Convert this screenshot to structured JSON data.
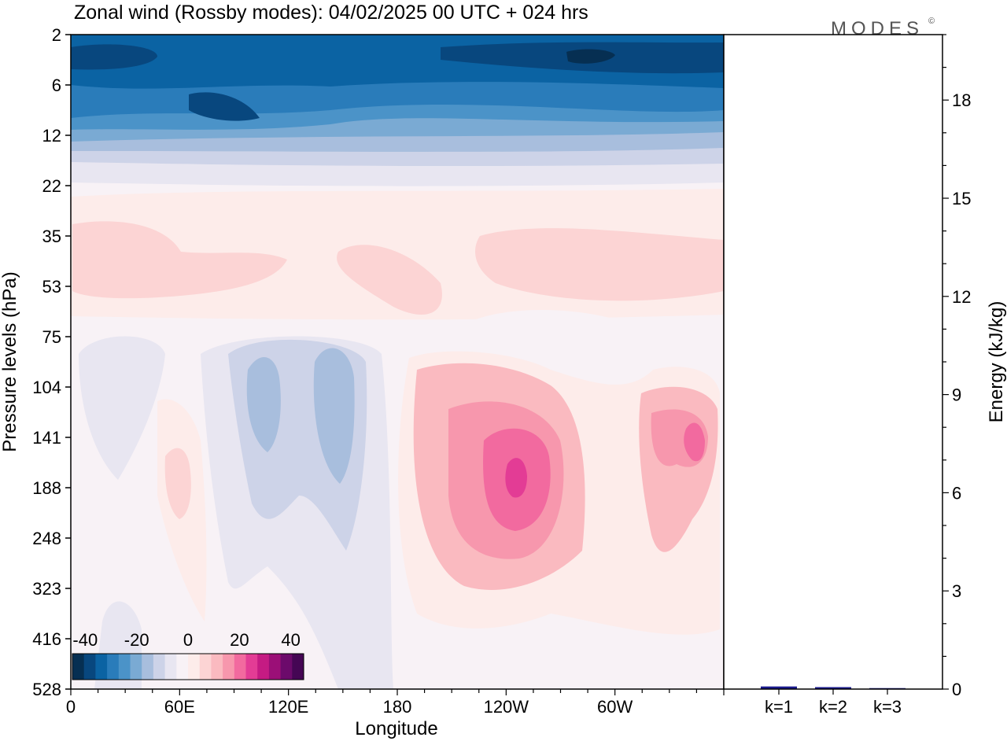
{
  "header": {
    "title": "Zonal wind (Rossby modes):  04/02/2025  00 UTC  + 024 hrs",
    "logo": "MODES",
    "logo_mark": "©"
  },
  "chart_data": [
    {
      "type": "heatmap",
      "title": "Zonal wind (Rossby modes):  04/02/2025  00 UTC  + 024 hrs",
      "xlabel": "Longitude",
      "ylabel": "Pressure levels (hPa)",
      "x_ticks": [
        "0",
        "60E",
        "120E",
        "180",
        "120W",
        "60W"
      ],
      "x_tick_lon_east": [
        0,
        60,
        120,
        180,
        240,
        300
      ],
      "xlim_lon_east": [
        0,
        360
      ],
      "y_ticks": [
        "2",
        "6",
        "12",
        "22",
        "35",
        "53",
        "75",
        "104",
        "141",
        "188",
        "248",
        "323",
        "416",
        "528"
      ],
      "ylim_hPa": [
        528,
        2
      ],
      "colorbar": {
        "ticks": [
          "-40",
          "-20",
          "0",
          "20",
          "40"
        ],
        "range": [
          -45,
          45
        ],
        "colors": [
          "#062f52",
          "#08477e",
          "#0b63a3",
          "#2a7cba",
          "#4b93c8",
          "#7aaad3",
          "#a8bedd",
          "#cdd3e8",
          "#e8e6f1",
          "#f8f2f6",
          "#fdecea",
          "#fcd4d4",
          "#fabac0",
          "#f797ad",
          "#f26a9f",
          "#e33c95",
          "#c51b83",
          "#9b0f77",
          "#6c0a6b",
          "#450654"
        ]
      },
      "features": [
        {
          "label": "easterly",
          "lon_east": [
            0,
            360
          ],
          "hPa": [
            2,
            12
          ],
          "u": -30
        },
        {
          "label": "westerly",
          "lon_east": [
            5,
            360
          ],
          "hPa": [
            30,
            55
          ],
          "u": 5
        },
        {
          "label": "easterly",
          "lon_east": [
            30,
            45
          ],
          "hPa": [
            95,
            150
          ],
          "u": -5
        },
        {
          "label": "easterly",
          "lon_east": [
            100,
            150
          ],
          "hPa": [
            100,
            400
          ],
          "u": -15
        },
        {
          "label": "westerly",
          "lon_east": [
            235,
            245
          ],
          "hPa": [
            160,
            220
          ],
          "u": 35
        },
        {
          "label": "westerly",
          "lon_east": [
            340,
            355
          ],
          "hPa": [
            125,
            175
          ],
          "u": 20
        }
      ]
    },
    {
      "type": "bar",
      "categories": [
        "k=1",
        "k=2",
        "k=3"
      ],
      "values": [
        0.08,
        0.06,
        0.03
      ],
      "ylabel": "Energy (kJ/kg)",
      "y_ticks": [
        0,
        3,
        6,
        9,
        12,
        15,
        18
      ],
      "ylim": [
        0,
        20
      ],
      "bar_color": "#1a1a8c"
    }
  ]
}
